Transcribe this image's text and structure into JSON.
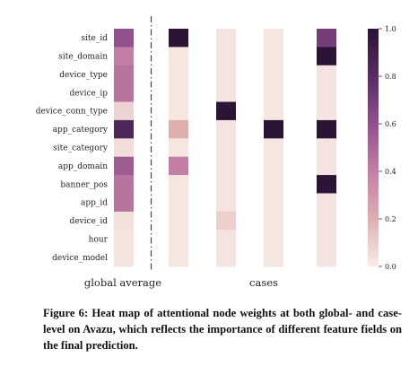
{
  "chart_data": {
    "type": "heatmap",
    "rows": [
      "site_id",
      "site_domain",
      "device_type",
      "device_ip",
      "device_conn_type",
      "app_category",
      "site_category",
      "app_domain",
      "banner_pos",
      "app_id",
      "device_id",
      "hour",
      "device_model"
    ],
    "global_average": [
      0.6,
      0.4,
      0.45,
      0.45,
      0.08,
      0.85,
      0.05,
      0.55,
      0.45,
      0.45,
      0.04,
      0.03,
      0.03
    ],
    "cases_label": "cases",
    "global_label": "global average",
    "cases": [
      {
        "values": [
          1.0,
          0.02,
          0.02,
          0.02,
          0.02,
          0.2,
          0.02,
          0.4,
          0.02,
          0.02,
          0.02,
          0.02,
          0.02
        ]
      },
      {
        "values": [
          0.03,
          0.03,
          0.03,
          0.03,
          1.0,
          0.03,
          0.03,
          0.03,
          0.03,
          0.03,
          0.1,
          0.03,
          0.03
        ]
      },
      {
        "values": [
          0.02,
          0.02,
          0.02,
          0.02,
          0.02,
          1.0,
          0.02,
          0.02,
          0.02,
          0.02,
          0.02,
          0.02,
          0.02
        ]
      },
      {
        "values": [
          0.7,
          1.0,
          0.03,
          0.03,
          0.03,
          1.0,
          0.03,
          0.03,
          1.0,
          0.03,
          0.03,
          0.03,
          0.03
        ]
      }
    ],
    "colorbar": {
      "range": [
        0.0,
        1.0
      ],
      "ticks": [
        "0.0",
        "0.2",
        "0.4",
        "0.6",
        "0.8",
        "1.0"
      ],
      "tick_values": [
        0.0,
        0.2,
        0.4,
        0.6,
        0.8,
        1.0
      ],
      "colors": [
        "#f8ece6",
        "#dfafae",
        "#c57ea3",
        "#92508e",
        "#5a2c64",
        "#2b1436"
      ]
    }
  },
  "caption": "Figure 6: Heat map of attentional node weights at both global- and case-level on Avazu, which reflects the importance of different feature fields on the final prediction."
}
